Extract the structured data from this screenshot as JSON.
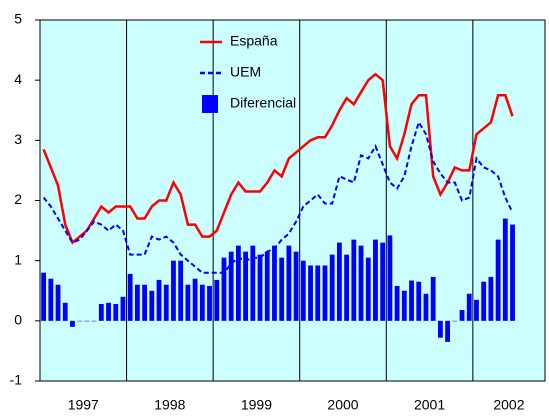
{
  "chart_data": {
    "type": "line_bar",
    "years": [
      "1997",
      "1998",
      "1999",
      "2000",
      "2001",
      "2002"
    ],
    "series": [
      {
        "name": "España",
        "type": "line",
        "color": "#ff0000",
        "dash": false,
        "values": [
          2.85,
          2.55,
          2.25,
          1.6,
          1.3,
          1.4,
          1.5,
          1.7,
          1.9,
          1.8,
          1.9,
          1.9,
          1.9,
          1.7,
          1.7,
          1.9,
          2.0,
          2.0,
          2.3,
          2.1,
          1.6,
          1.6,
          1.4,
          1.4,
          1.5,
          1.8,
          2.1,
          2.3,
          2.15,
          2.15,
          2.15,
          2.3,
          2.5,
          2.4,
          2.7,
          2.8,
          2.9,
          3.0,
          3.05,
          3.05,
          3.25,
          3.5,
          3.7,
          3.6,
          3.8,
          4.0,
          4.1,
          4.0,
          2.9,
          2.7,
          3.1,
          3.6,
          3.75,
          3.75,
          2.4,
          2.1,
          2.3,
          2.55,
          2.5,
          2.5,
          3.1,
          3.2,
          3.3,
          3.75,
          3.75,
          3.4
        ]
      },
      {
        "name": "UEM",
        "type": "line",
        "color": "#0000ff",
        "dash": true,
        "values": [
          2.05,
          1.9,
          1.7,
          1.5,
          1.3,
          1.35,
          1.5,
          1.65,
          1.6,
          1.5,
          1.6,
          1.5,
          1.1,
          1.1,
          1.1,
          1.4,
          1.35,
          1.4,
          1.3,
          1.1,
          1.0,
          0.9,
          0.8,
          0.8,
          0.8,
          0.8,
          0.95,
          1.05,
          1.0,
          1.05,
          1.05,
          1.15,
          1.2,
          1.35,
          1.45,
          1.65,
          1.9,
          2.0,
          2.1,
          1.95,
          1.95,
          2.4,
          2.35,
          2.3,
          2.75,
          2.7,
          2.9,
          2.6,
          2.3,
          2.2,
          2.4,
          2.9,
          3.3,
          3.1,
          2.65,
          2.45,
          2.3,
          2.3,
          2.0,
          2.05,
          2.7,
          2.55,
          2.5,
          2.4,
          2.05,
          1.8
        ]
      },
      {
        "name": "Diferencial",
        "type": "bar",
        "color": "#0000ff",
        "values": [
          0.8,
          0.7,
          0.6,
          0.3,
          -0.1,
          0,
          0,
          0,
          0.28,
          0.3,
          0.28,
          0.4,
          0.78,
          0.6,
          0.6,
          0.5,
          0.68,
          0.6,
          1.0,
          1.0,
          0.6,
          0.7,
          0.6,
          0.58,
          0.68,
          1.05,
          1.15,
          1.25,
          1.15,
          1.25,
          1.1,
          1.15,
          1.25,
          1.05,
          1.25,
          1.15,
          1.0,
          0.92,
          0.92,
          0.92,
          1.1,
          1.3,
          1.1,
          1.35,
          1.25,
          1.05,
          1.35,
          1.3,
          1.42,
          0.58,
          0.5,
          0.67,
          0.65,
          0.45,
          0.73,
          -0.28,
          -0.35,
          0.0,
          0.18,
          0.45,
          0.35,
          0.65,
          0.73,
          1.35,
          1.7,
          1.6
        ]
      }
    ],
    "ylim": [
      -1,
      5
    ],
    "yticks": [
      -1,
      0,
      1,
      2,
      3,
      4,
      5
    ],
    "xgrid": true,
    "background": "#ccffff"
  }
}
